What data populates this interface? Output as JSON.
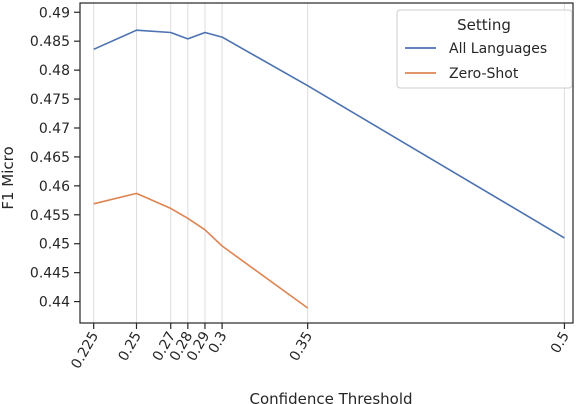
{
  "chart_data": {
    "type": "line",
    "title": "",
    "xlabel": "Confidence Threshold",
    "ylabel": "F1 Micro",
    "xlim": [
      0.217,
      0.505
    ],
    "ylim": [
      0.4363,
      0.4916
    ],
    "x_ticks": [
      0.225,
      0.25,
      0.27,
      0.28,
      0.29,
      0.3,
      0.35,
      0.5
    ],
    "x_tick_labels": [
      "0.225",
      "0.25",
      "0.27",
      "0.28",
      "0.29",
      "0.3",
      "0.35",
      "0.5"
    ],
    "y_ticks": [
      0.44,
      0.445,
      0.45,
      0.455,
      0.46,
      0.465,
      0.47,
      0.475,
      0.48,
      0.485,
      0.49
    ],
    "y_tick_labels": [
      "0.44",
      "0.445",
      "0.45",
      "0.455",
      "0.46",
      "0.465",
      "0.47",
      "0.475",
      "0.48",
      "0.485",
      "0.49"
    ],
    "grid": "vertical lines at x ticks",
    "legend": {
      "title": "Setting",
      "placement": "top-right"
    },
    "series": [
      {
        "name": "All Languages",
        "color": "#4c72b0",
        "x": [
          0.225,
          0.25,
          0.27,
          0.28,
          0.29,
          0.3,
          0.35,
          0.5
        ],
        "y": [
          0.4836,
          0.4869,
          0.4865,
          0.4854,
          0.4865,
          0.4857,
          0.4773,
          0.451
        ]
      },
      {
        "name": "Zero-Shot",
        "color": "#dd8452",
        "x": [
          0.225,
          0.25,
          0.27,
          0.28,
          0.29,
          0.3,
          0.35
        ],
        "y": [
          0.4569,
          0.4587,
          0.4561,
          0.4544,
          0.4524,
          0.4496,
          0.4389
        ]
      }
    ]
  }
}
